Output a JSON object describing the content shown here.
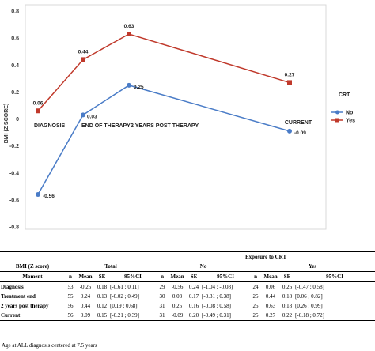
{
  "chart_data": {
    "type": "line",
    "ylabel": "BMI (Z SCORE)",
    "ylim": [
      -0.8,
      0.8
    ],
    "yticks": [
      "-0.8",
      "-0.6",
      "-0.4",
      "-0.2",
      "0",
      "0.2",
      "0.4",
      "0.6",
      "0.8"
    ],
    "ytick_values": [
      -0.8,
      -0.6,
      -0.4,
      -0.2,
      0,
      0.2,
      0.4,
      0.6,
      0.8
    ],
    "categories": [
      "DIAGNOSIS",
      "END OF THERAPY",
      "2 YEARS POST THERAPY",
      "CURRENT"
    ],
    "grid": false,
    "legend_title": "CRT",
    "legend_position": "right",
    "series": [
      {
        "name": "No",
        "values": [
          -0.56,
          0.03,
          0.25,
          -0.09
        ],
        "labels": [
          "-0.56",
          "0.03",
          "0.25",
          "-0.09"
        ],
        "color": "#4a7cc7",
        "marker": "circle"
      },
      {
        "name": "Yes",
        "values": [
          0.06,
          0.44,
          0.63,
          0.27
        ],
        "labels": [
          "0.06",
          "0.44",
          "0.63",
          "0.27"
        ],
        "color": "#c0392b",
        "marker": "square"
      }
    ]
  },
  "table": {
    "row_header": "BMI (Z score)",
    "group_total": "Total",
    "group_exposure": "Exposure to CRT",
    "group_no": "No",
    "group_yes": "Yes",
    "col_moment": "Moment",
    "col_n": "n",
    "col_mean": "Mean",
    "col_se": "SE",
    "col_ci": "95%CI",
    "rows": [
      {
        "moment": "Diagnosis",
        "t": [
          "53",
          "-0.25",
          "0.18",
          "[-0.61 ; 0.11]"
        ],
        "no": [
          "29",
          "-0.56",
          "0.24",
          "[-1.04 ; -0.08]"
        ],
        "yes": [
          "24",
          "0.06",
          "0.26",
          "[-0.47 ; 0.58]"
        ]
      },
      {
        "moment": "Treatment end",
        "t": [
          "55",
          "0.24",
          "0.13",
          "[-0.02 ; 0.49]"
        ],
        "no": [
          "30",
          "0.03",
          "0.17",
          "[-0.31 ; 0.38]"
        ],
        "yes": [
          "25",
          "0.44",
          "0.18",
          "[0.06 ; 0.82]"
        ]
      },
      {
        "moment": "2 years post therapy",
        "t": [
          "56",
          "0.44",
          "0.12",
          "[0.19 ; 0.68]"
        ],
        "no": [
          "31",
          "0.25",
          "0.16",
          "[-0.08 ; 0.58]"
        ],
        "yes": [
          "25",
          "0.63",
          "0.18",
          "[0.26 ; 0.99]"
        ]
      },
      {
        "moment": "Current",
        "t": [
          "56",
          "0.09",
          "0.15",
          "[-0.21 ; 0.39]"
        ],
        "no": [
          "31",
          "-0.09",
          "0.20",
          "[-0.49 ; 0.31]"
        ],
        "yes": [
          "25",
          "0.27",
          "0.22",
          "[-0.18 ; 0.72]"
        ]
      }
    ],
    "note": "Age at ALL diagnosis centered at 7.5 years"
  }
}
